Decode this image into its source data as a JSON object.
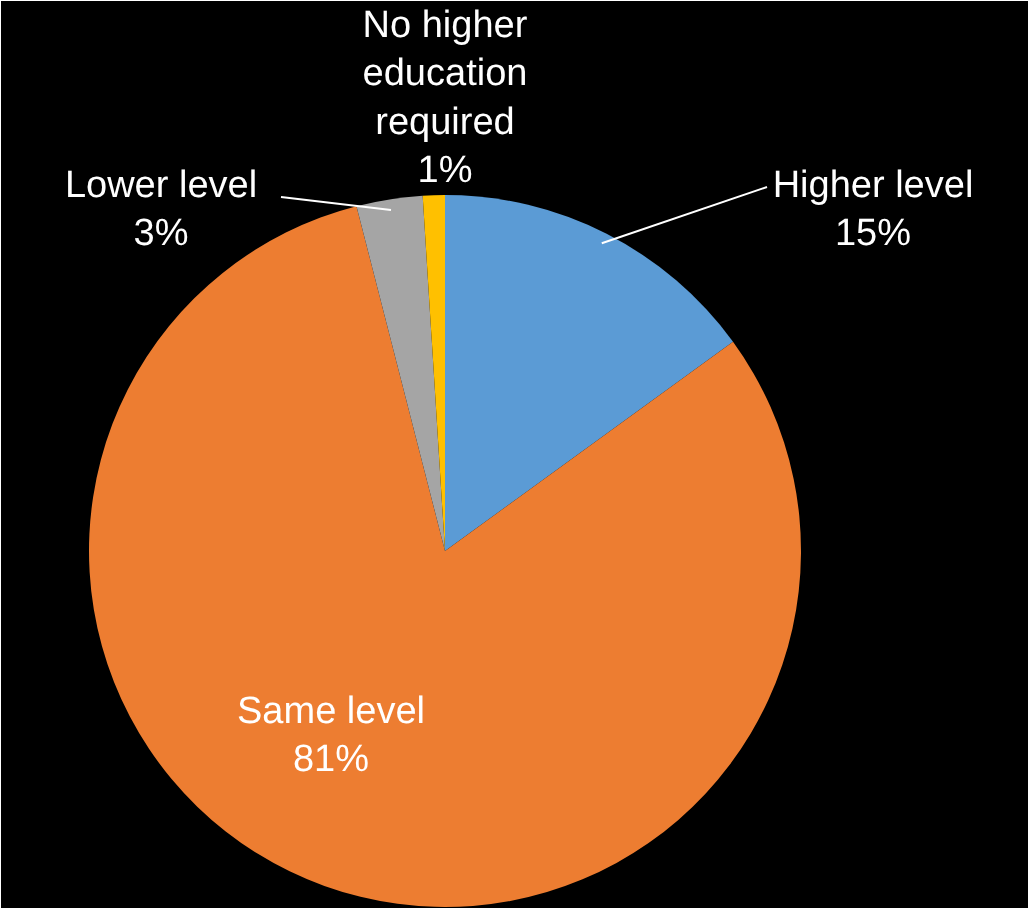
{
  "chart_data": {
    "type": "pie",
    "categories": [
      "Higher level",
      "Same level",
      "Lower level",
      "No higher education required"
    ],
    "values": [
      15,
      81,
      3,
      1
    ],
    "colors": [
      "#5b9bd5",
      "#ed7d31",
      "#a5a5a5",
      "#ffc000"
    ],
    "value_labels": [
      "15%",
      "81%",
      "3%",
      "1%"
    ]
  }
}
